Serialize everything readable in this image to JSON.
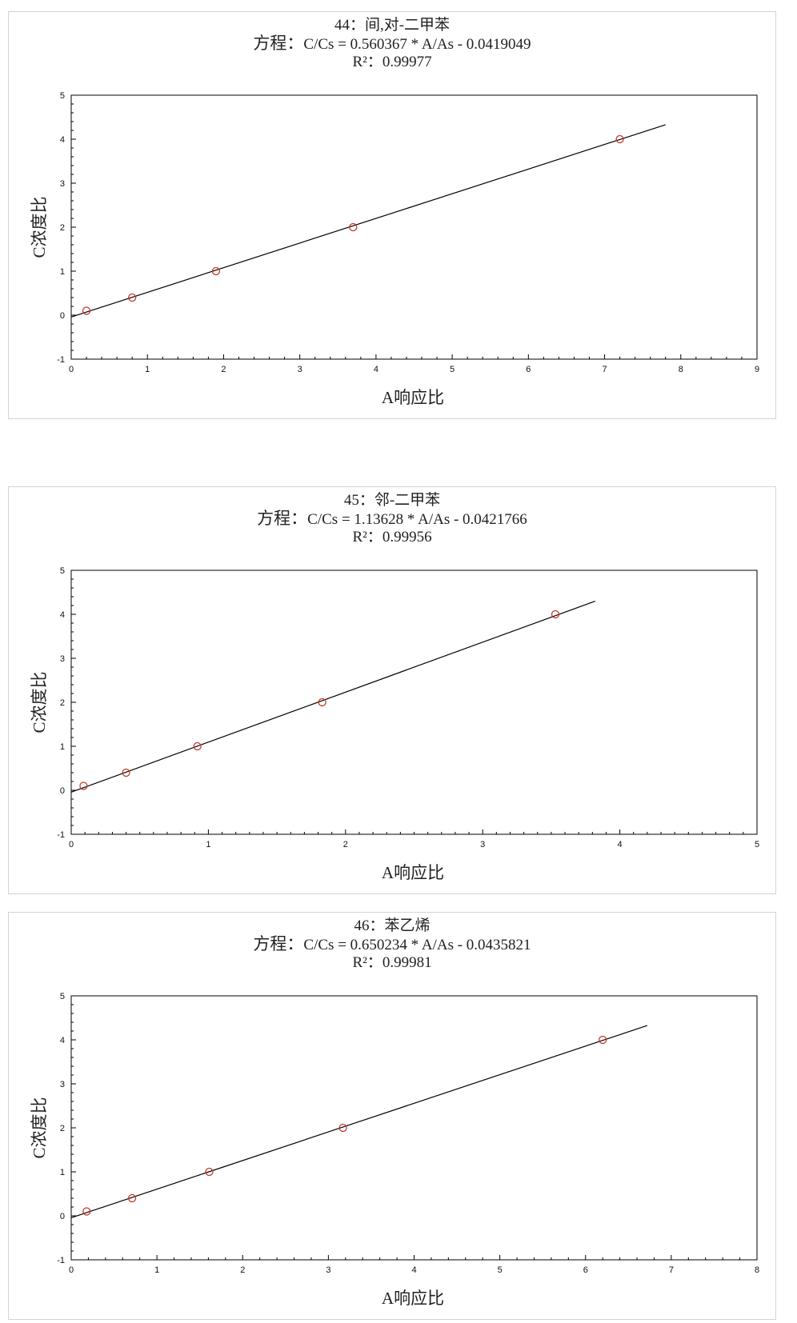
{
  "chart_data": [
    {
      "type": "scatter",
      "title": "44：间,对-二甲苯",
      "equation_label": "方程：",
      "equation": "C/Cs = 0.560367 * A/As - 0.0419049",
      "r2_label": "R²：",
      "r2": "0.99977",
      "xlabel": "A响应比",
      "ylabel": "C浓度比",
      "xlim": [
        0,
        9
      ],
      "ylim": [
        -1,
        5
      ],
      "x_ticks": [
        0,
        1,
        2,
        3,
        4,
        5,
        6,
        7,
        8,
        9
      ],
      "y_ticks": [
        -1,
        0,
        1,
        2,
        3,
        4,
        5
      ],
      "points": {
        "x": [
          0.2,
          0.8,
          1.9,
          3.7,
          7.2
        ],
        "y": [
          0.1,
          0.4,
          1.0,
          2.0,
          4.0
        ]
      },
      "fit_line": {
        "x": [
          0,
          7.8
        ],
        "slope": 0.560367,
        "intercept": -0.0419049
      },
      "colors": {
        "points": "#c0392b",
        "line": "#000000"
      },
      "grid": false
    },
    {
      "type": "scatter",
      "title": "45：邻-二甲苯",
      "equation_label": "方程：",
      "equation": "C/Cs = 1.13628 * A/As - 0.0421766",
      "r2_label": "R²：",
      "r2": "0.99956",
      "xlabel": "A响应比",
      "ylabel": "C浓度比",
      "xlim": [
        0,
        5
      ],
      "ylim": [
        -1,
        5
      ],
      "x_ticks": [
        0,
        1,
        2,
        3,
        4,
        5
      ],
      "y_ticks": [
        -1,
        0,
        1,
        2,
        3,
        4,
        5
      ],
      "points": {
        "x": [
          0.09,
          0.4,
          0.92,
          1.83,
          3.53
        ],
        "y": [
          0.1,
          0.4,
          1.0,
          2.0,
          4.0
        ]
      },
      "fit_line": {
        "x": [
          0,
          3.82
        ],
        "slope": 1.13628,
        "intercept": -0.0421766
      },
      "colors": {
        "points": "#c0392b",
        "line": "#000000"
      },
      "grid": false
    },
    {
      "type": "scatter",
      "title": "46：苯乙烯",
      "equation_label": "方程：",
      "equation": "C/Cs = 0.650234 * A/As - 0.0435821",
      "r2_label": "R²：",
      "r2": "0.99981",
      "xlabel": "A响应比",
      "ylabel": "C浓度比",
      "xlim": [
        0,
        8
      ],
      "ylim": [
        -1,
        5
      ],
      "x_ticks": [
        0,
        1,
        2,
        3,
        4,
        5,
        6,
        7,
        8
      ],
      "y_ticks": [
        -1,
        0,
        1,
        2,
        3,
        4,
        5
      ],
      "points": {
        "x": [
          0.18,
          0.71,
          1.61,
          3.17,
          6.2
        ],
        "y": [
          0.1,
          0.4,
          1.0,
          2.0,
          4.0
        ]
      },
      "fit_line": {
        "x": [
          0,
          6.72
        ],
        "slope": 0.650234,
        "intercept": -0.0435821
      },
      "colors": {
        "points": "#c0392b",
        "line": "#000000"
      },
      "grid": false
    }
  ]
}
